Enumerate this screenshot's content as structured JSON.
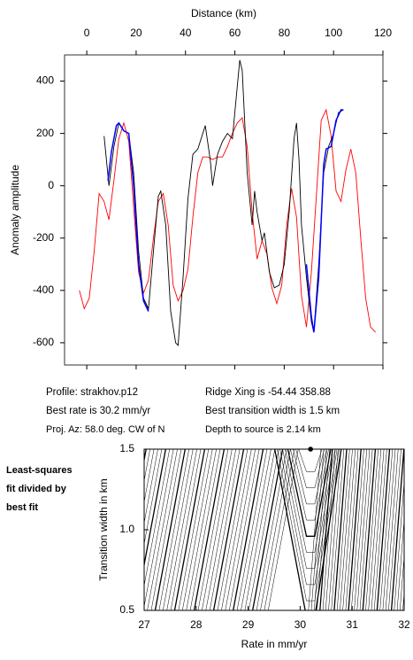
{
  "chart_data": [
    {
      "type": "line",
      "x_label": "Distance (km)",
      "y_label": "Anomaly amplitude",
      "xlim": [
        -9,
        120
      ],
      "xticks": [
        0,
        20,
        40,
        60,
        80,
        100,
        120
      ],
      "ylim": [
        -685,
        500
      ],
      "yticks": [
        -600,
        -400,
        -200,
        0,
        200,
        400
      ],
      "series": [
        {
          "color": "#ff0000",
          "x": [
            -3,
            -1,
            1,
            3,
            5,
            7,
            9,
            11,
            13,
            15,
            17,
            19,
            21,
            23,
            25,
            27,
            29,
            31,
            33,
            35,
            37,
            39,
            41,
            43,
            45,
            47,
            49,
            51,
            53,
            55,
            57,
            59,
            61,
            63,
            65,
            67,
            69,
            71,
            73,
            75,
            77,
            79,
            81,
            83,
            85,
            87,
            89,
            91,
            93,
            95,
            97,
            99,
            101,
            103,
            105,
            107,
            109,
            111,
            113,
            115,
            117
          ],
          "values": [
            -400,
            -470,
            -430,
            -250,
            -30,
            -60,
            -130,
            20,
            180,
            240,
            170,
            -80,
            -330,
            -410,
            -360,
            -200,
            -60,
            -30,
            -150,
            -380,
            -440,
            -400,
            -320,
            -120,
            50,
            110,
            110,
            100,
            110,
            110,
            150,
            200,
            240,
            260,
            150,
            -100,
            -280,
            -210,
            -260,
            -390,
            -450,
            -380,
            -150,
            -10,
            -120,
            -420,
            -540,
            -330,
            -40,
            250,
            290,
            190,
            -20,
            -60,
            60,
            140,
            50,
            -200,
            -430,
            -540,
            -560
          ]
        },
        {
          "color": "#000000",
          "x": [
            7,
            9,
            11,
            13,
            15,
            17,
            19,
            21,
            23,
            25,
            27,
            29,
            30,
            32,
            34,
            36,
            37,
            39,
            41,
            43,
            45,
            47,
            48,
            50,
            51,
            53,
            55,
            57,
            59,
            61,
            62,
            63,
            65,
            67,
            68,
            69,
            71,
            72,
            74,
            76,
            78,
            80,
            82,
            84,
            85,
            86,
            87,
            89,
            91,
            92,
            94,
            96,
            98,
            100,
            102,
            104
          ],
          "values": [
            190,
            0,
            150,
            240,
            210,
            200,
            50,
            -250,
            -430,
            -470,
            -250,
            -40,
            -20,
            -150,
            -480,
            -600,
            -610,
            -350,
            -50,
            120,
            140,
            200,
            230,
            100,
            0,
            120,
            170,
            200,
            180,
            380,
            480,
            440,
            50,
            -150,
            -20,
            -100,
            -210,
            -180,
            -330,
            -390,
            -380,
            -300,
            -100,
            180,
            240,
            100,
            -150,
            -350,
            -520,
            -560,
            -300,
            50,
            150,
            200,
            280,
            290
          ]
        },
        {
          "color": "#0000ff",
          "x": [
            8.6,
            10,
            12,
            13,
            15,
            17,
            19,
            21,
            23,
            25,
            60,
            89,
            91,
            92,
            94,
            96,
            97,
            99,
            101,
            103,
            104
          ],
          "values": [
            20,
            130,
            230,
            240,
            210,
            200,
            0,
            -300,
            -440,
            -480,
            null,
            -300,
            -500,
            -560,
            -350,
            80,
            140,
            150,
            250,
            290,
            290
          ]
        }
      ]
    },
    {
      "type": "contour",
      "x_label": "Rate in mm/yr",
      "y_label": "Transition width in km",
      "xlim": [
        27,
        32
      ],
      "xticks": [
        27,
        28,
        29,
        30,
        31,
        32
      ],
      "ylim": [
        0.5,
        1.5
      ],
      "yticks": [
        0.5,
        {
          "value": 1,
          "label": "1.0"
        },
        1.5
      ],
      "best_fit": {
        "x": 30.2,
        "y": 1.5
      },
      "side_note": [
        "Least-squares",
        "fit divided by",
        "best fit"
      ]
    }
  ],
  "info": {
    "left": [
      "Profile: strakhov.p12",
      "Best rate is 30.2 mm/yr",
      "Proj. Az: 58.0 deg. CW of N"
    ],
    "right": [
      "Ridge Xing is -54.44 358.88",
      "Best transition width is 1.5 km",
      "Depth to source is   2.14 km"
    ]
  }
}
